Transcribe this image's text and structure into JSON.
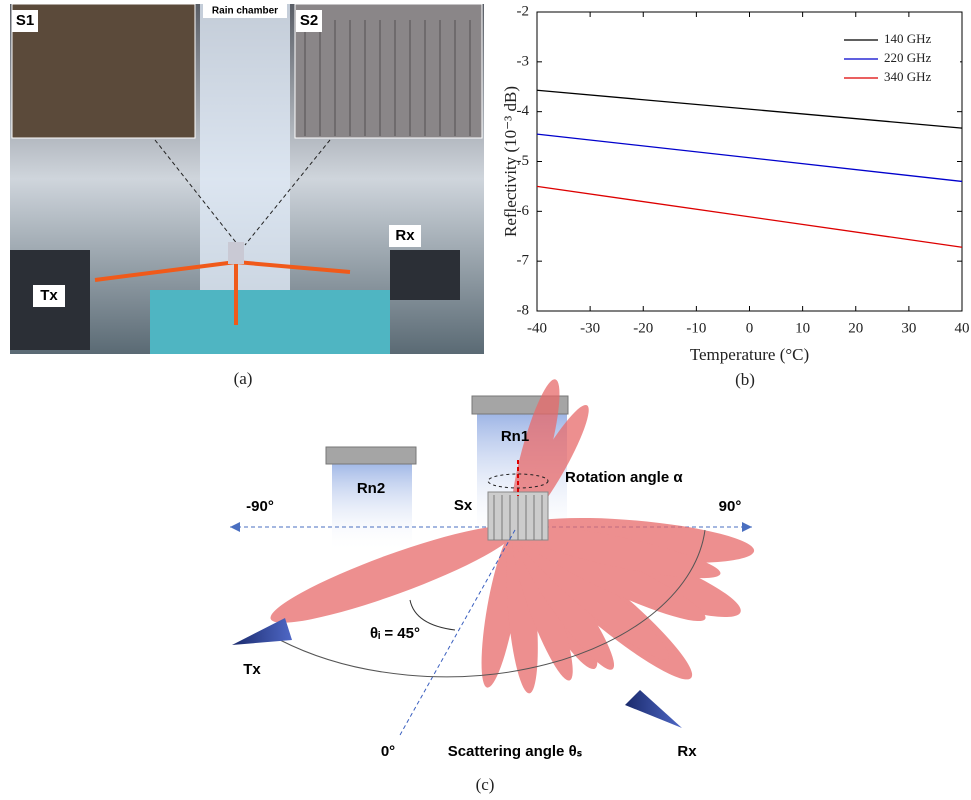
{
  "chart_data": {
    "type": "line",
    "x_label": "Temperature (°C)",
    "y_label": "Reflectivity (10⁻³ dB)",
    "x": [
      -40,
      40
    ],
    "series": [
      {
        "name": "140 GHz",
        "color": "#000000",
        "values": [
          -3.57,
          -4.33
        ]
      },
      {
        "name": "220 GHz",
        "color": "#0000cc",
        "values": [
          -4.45,
          -5.4
        ]
      },
      {
        "name": "340 GHz",
        "color": "#dd0000",
        "values": [
          -5.5,
          -6.72
        ]
      }
    ],
    "xlim": [
      -40,
      40
    ],
    "xticks": [
      -40,
      -30,
      -20,
      -10,
      0,
      10,
      20,
      30,
      40
    ],
    "ylim": [
      -8,
      -2
    ],
    "yticks": [
      -8,
      -7,
      -6,
      -5,
      -4,
      -3,
      -2
    ],
    "legend": "upper right",
    "grid": false
  },
  "photo": {
    "caption": "(a)",
    "labels": {
      "s1": "S1",
      "s2": "S2",
      "chamber": "Rain chamber",
      "tx": "Tx",
      "rx": "Rx"
    }
  },
  "chart_caption": "(b)",
  "diagram": {
    "caption": "(c)",
    "rn1": "Rn1",
    "rn2": "Rn2",
    "sx": "Sx",
    "rotation": "Rotation angle α",
    "left": "-90°",
    "right": "90°",
    "incidence": "θᵢ = 45°",
    "tx": "Tx",
    "rx": "Rx",
    "zero": "0°",
    "scattering": "Scattering angle θₛ"
  }
}
